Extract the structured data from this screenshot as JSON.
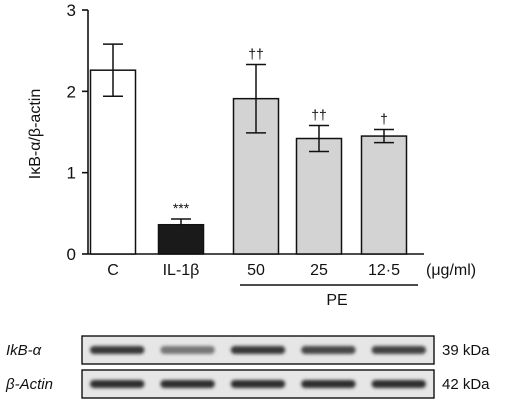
{
  "chart_data": {
    "type": "bar",
    "categories": [
      "C",
      "IL-1β",
      "50",
      "25",
      "12·5"
    ],
    "values": [
      2.26,
      0.36,
      1.91,
      1.42,
      1.45
    ],
    "errors": [
      0.32,
      0.07,
      0.42,
      0.16,
      0.08
    ],
    "significance": [
      "",
      "***",
      "††",
      "††",
      "†"
    ],
    "bar_colors": [
      "#ffffff",
      "#1a1a1a",
      "#d3d3d3",
      "#d3d3d3",
      "#d3d3d3"
    ],
    "ylabel": "IκB-α/β-actin",
    "yticks": [
      "0",
      "1",
      "2",
      "3"
    ],
    "ylim": [
      0,
      3
    ],
    "unit_label": "(μg/ml)",
    "group_label": "PE",
    "group_start_index": 2,
    "grid": false,
    "legend": "none"
  },
  "blot": {
    "rows": [
      {
        "label": "IkB-α",
        "kda": "39 kDa",
        "band_intensity": [
          0.85,
          0.55,
          0.85,
          0.78,
          0.8
        ]
      },
      {
        "label": "β-Actin",
        "kda": "42 kDa",
        "band_intensity": [
          0.9,
          0.9,
          0.9,
          0.9,
          0.9
        ]
      }
    ]
  }
}
